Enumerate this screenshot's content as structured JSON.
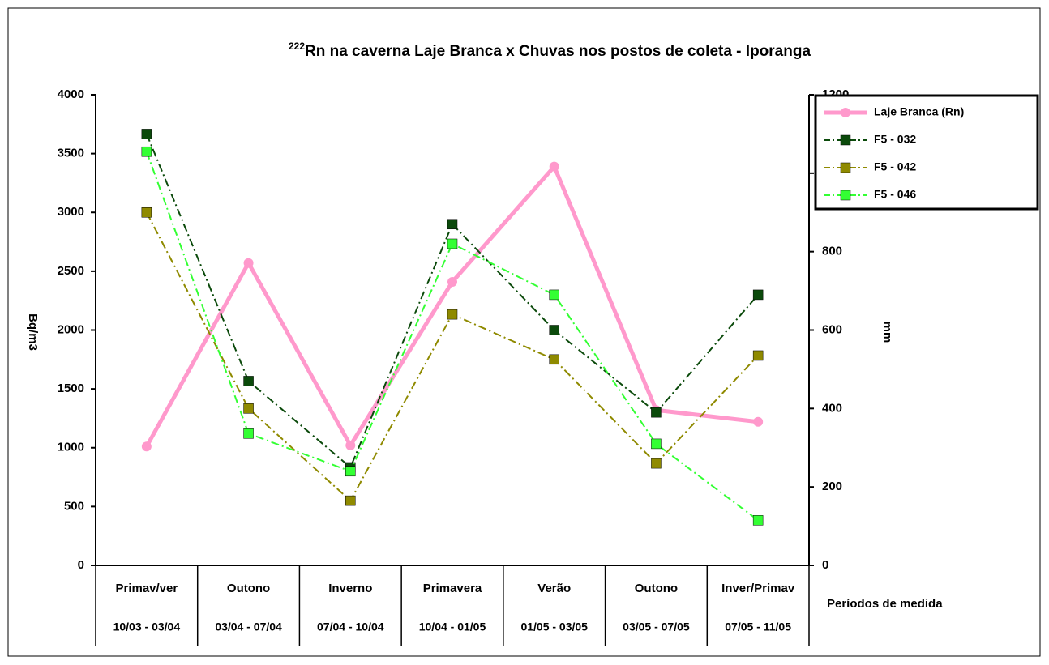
{
  "chart_data": {
    "type": "line",
    "title_superscript": "222",
    "title": "Rn na caverna Laje Branca x Chuvas nos postos de coleta - Iporanga",
    "y_label": "Bq/m3",
    "y2_label": "mm",
    "x_label": "Períodos de medida",
    "categories": [
      "Primav/ver",
      "Outono",
      "Inverno",
      "Primavera",
      "Verão",
      "Outono",
      "Inver/Primav"
    ],
    "category_periods": [
      "10/03 - 03/04",
      "03/04 - 07/04",
      "07/04 - 10/04",
      "10/04 - 01/05",
      "01/05 - 03/05",
      "03/05 - 07/05",
      "07/05 - 11/05"
    ],
    "ylim": [
      0,
      4000
    ],
    "yticks": [
      0,
      500,
      1000,
      1500,
      2000,
      2500,
      3000,
      3500,
      4000
    ],
    "y2lim": [
      0,
      1200
    ],
    "y2ticks": [
      0,
      200,
      400,
      600,
      800,
      1000,
      1200
    ],
    "legend": "right",
    "series": [
      {
        "name": "Laje Branca  (Rn)",
        "color": "#ff99cc",
        "axis": "y",
        "values": [
          1010,
          2570,
          1020,
          2410,
          3390,
          1320,
          1220
        ]
      },
      {
        "name": "F5 - 032",
        "color": "#0b4a0b",
        "axis": "y2",
        "values": [
          1100,
          470,
          250,
          870,
          600,
          390,
          690
        ]
      },
      {
        "name": "F5 - 042",
        "color": "#8f8a00",
        "axis": "y2",
        "values": [
          900,
          400,
          165,
          640,
          525,
          260,
          535
        ]
      },
      {
        "name": "F5 - 046",
        "color": "#33ff33",
        "axis": "y2",
        "values": [
          1055,
          336,
          240,
          820,
          690,
          310,
          115
        ]
      }
    ]
  }
}
